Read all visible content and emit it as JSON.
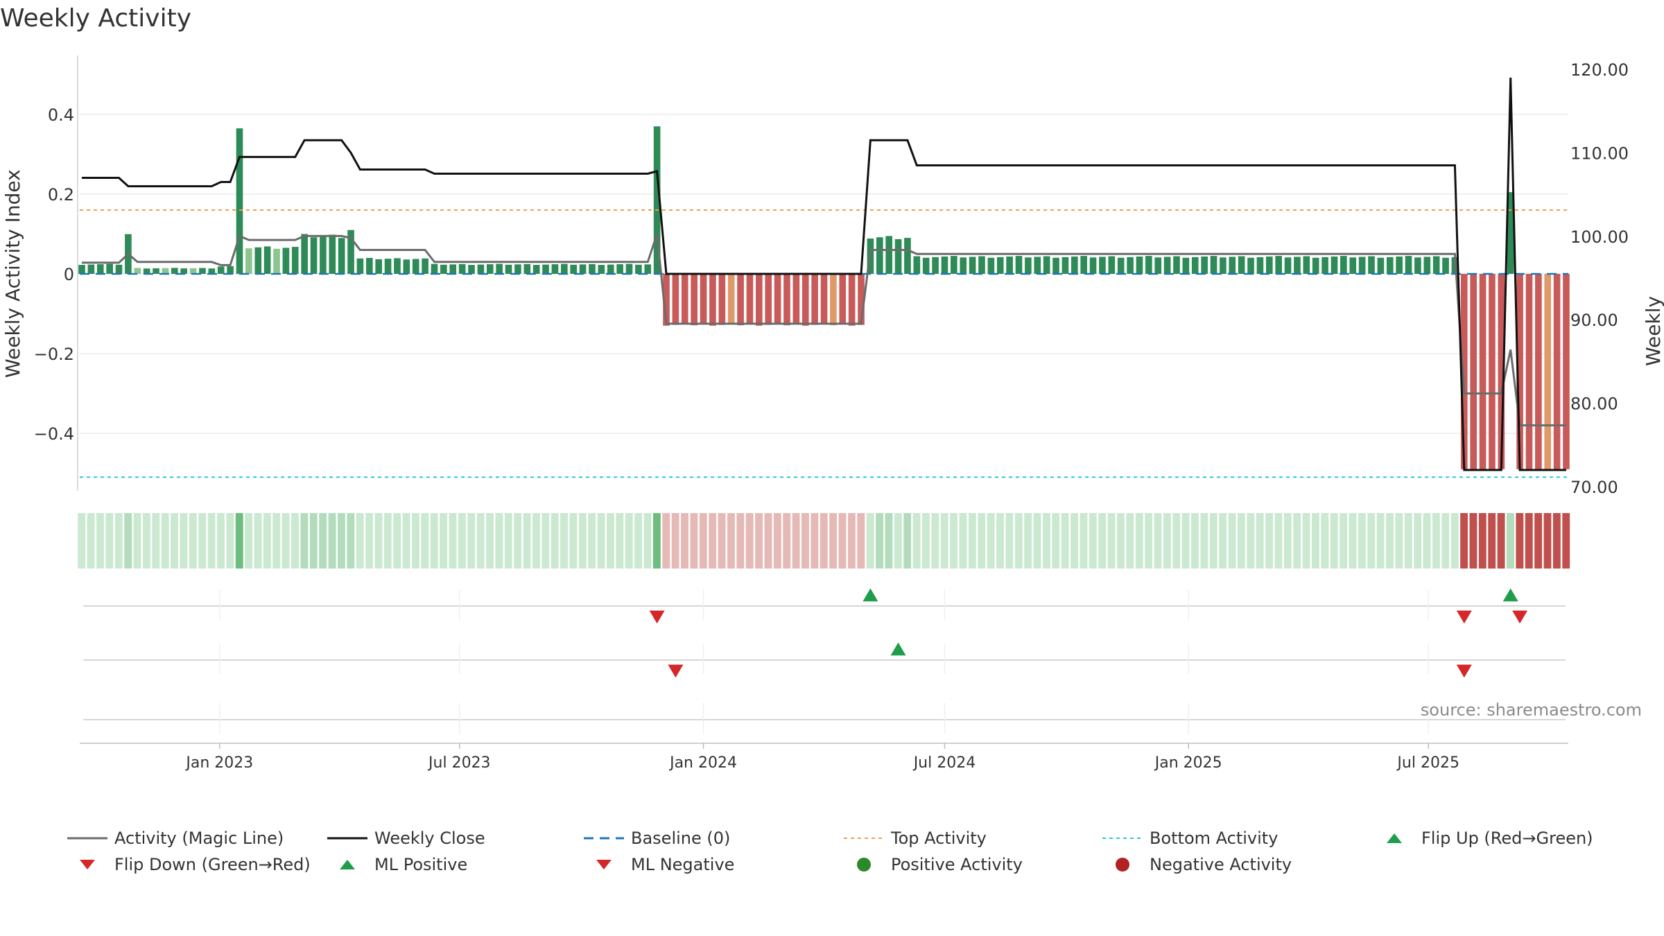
{
  "title": "Weekly Activity",
  "source_text": "source: sharemaestro.com",
  "colors": {
    "pos_dark": "#2e8b57",
    "pos_light": "#8cc68f",
    "neg_dark": "#c85a5a",
    "neg_light": "#e09a6a",
    "magic_line": "#6b6b6b",
    "close_line": "#111111",
    "baseline": "#1f77b4",
    "top_line": "#f0a050",
    "bottom_line": "#29c7d3",
    "up_marker": "#1e9e4a",
    "down_marker": "#d62728",
    "pos_dot": "#2a8a2a",
    "neg_dot": "#b22222"
  },
  "chart_data": {
    "type": "bar",
    "title": "Weekly Activity",
    "ylabel": "Weekly Activity Index",
    "ylabel_right": "Weekly Close Price",
    "ylim": [
      -0.55,
      0.55
    ],
    "ylim_right": [
      70,
      120
    ],
    "yticks": [
      {
        "v": 0.4,
        "label": "0.4"
      },
      {
        "v": 0.2,
        "label": "0.2"
      },
      {
        "v": 0,
        "label": "0"
      },
      {
        "v": -0.2,
        "label": "−0.2"
      },
      {
        "v": -0.4,
        "label": "−0.4"
      }
    ],
    "yticks_right": [
      {
        "v": 120,
        "label": "120.00"
      },
      {
        "v": 110,
        "label": "110.00"
      },
      {
        "v": 100,
        "label": "100.00"
      },
      {
        "v": 90,
        "label": "90.00"
      },
      {
        "v": 80,
        "label": "80.00"
      },
      {
        "v": 70,
        "label": "70.00"
      }
    ],
    "x_start": "2022-09-19",
    "x_end": "2025-10-13",
    "xticks": [
      {
        "date": "2023-01-01",
        "label": "Jan 2023"
      },
      {
        "date": "2023-07-01",
        "label": "Jul 2023"
      },
      {
        "date": "2024-01-01",
        "label": "Jan 2024"
      },
      {
        "date": "2024-07-01",
        "label": "Jul 2024"
      },
      {
        "date": "2025-01-01",
        "label": "Jan 2025"
      },
      {
        "date": "2025-07-01",
        "label": "Jul 2025"
      }
    ],
    "top_activity": 0.16,
    "bottom_activity": -0.51,
    "baseline": 0,
    "segments": [
      {
        "from": "2022-09-19",
        "to": "2022-10-17",
        "activity": 0.025,
        "close": 107.0,
        "magic": 0.028,
        "shade": "dark"
      },
      {
        "from": "2022-10-24",
        "to": "2022-10-24",
        "activity": 0.105,
        "close": 106.0,
        "magic": 0.05,
        "shade": "dark"
      },
      {
        "from": "2022-10-31",
        "to": "2022-12-26",
        "activity": 0.015,
        "close": 106.0,
        "magic": 0.03,
        "shade": "light"
      },
      {
        "from": "2023-01-02",
        "to": "2023-01-09",
        "activity": 0.02,
        "close": 106.5,
        "magic": 0.022,
        "shade": "dark"
      },
      {
        "from": "2023-01-16",
        "to": "2023-01-16",
        "activity": 0.365,
        "close": 109.5,
        "magic": 0.095,
        "shade": "dark"
      },
      {
        "from": "2023-01-23",
        "to": "2023-02-27",
        "activity": 0.07,
        "close": 109.5,
        "magic": 0.085,
        "shade": "light"
      },
      {
        "from": "2023-03-06",
        "to": "2023-04-03",
        "activity": 0.1,
        "close": 111.5,
        "magic": 0.095,
        "shade": "dark"
      },
      {
        "from": "2023-04-10",
        "to": "2023-04-10",
        "activity": 0.11,
        "close": 110.0,
        "magic": 0.09,
        "shade": "dark"
      },
      {
        "from": "2023-04-17",
        "to": "2023-06-05",
        "activity": 0.04,
        "close": 108.0,
        "magic": 0.06,
        "shade": "dark"
      },
      {
        "from": "2023-06-12",
        "to": "2023-11-20",
        "activity": 0.025,
        "close": 107.5,
        "magic": 0.03,
        "shade": "dark"
      },
      {
        "from": "2023-11-27",
        "to": "2023-11-27",
        "activity": 0.37,
        "close": 107.8,
        "magic": 0.1,
        "shade": "dark"
      },
      {
        "from": "2023-12-04",
        "to": "2024-04-29",
        "activity": -0.13,
        "close": 95.5,
        "magic": -0.125,
        "shade": "dark"
      },
      {
        "from": "2024-05-06",
        "to": "2024-06-03",
        "activity": 0.095,
        "close": 111.5,
        "magic": 0.06,
        "shade": "dark"
      },
      {
        "from": "2024-06-10",
        "to": "2025-07-21",
        "activity": 0.045,
        "close": 108.5,
        "magic": 0.05,
        "shade": "dark"
      },
      {
        "from": "2025-07-28",
        "to": "2025-08-25",
        "activity": -0.49,
        "close": 72.0,
        "magic": -0.3,
        "shade": "dark"
      },
      {
        "from": "2025-09-01",
        "to": "2025-09-01",
        "activity": 0.205,
        "close": 119.0,
        "magic": -0.19,
        "shade": "dark"
      },
      {
        "from": "2025-09-08",
        "to": "2025-10-13",
        "activity": -0.49,
        "close": 72.0,
        "magic": -0.38,
        "shade": "dark"
      }
    ],
    "event_rows": [
      {
        "up": [
          "2024-05-06",
          "2025-09-01"
        ],
        "down": [
          "2023-11-27",
          "2025-07-28",
          "2025-09-08"
        ]
      },
      {
        "up": [
          "2024-05-27"
        ],
        "down": [
          "2023-12-11"
        ],
        "down_row2": [
          "2025-07-28"
        ]
      },
      {
        "up": [],
        "down": []
      }
    ]
  },
  "legend": [
    {
      "label": "Activity (Magic Line)",
      "symbol": "gray-line"
    },
    {
      "label": "Weekly Close",
      "symbol": "black-line"
    },
    {
      "label": "Baseline (0)",
      "symbol": "blue-dash"
    },
    {
      "label": "Top Activity",
      "symbol": "orange-dot-line"
    },
    {
      "label": "Bottom Activity",
      "symbol": "cyan-dot-line"
    },
    {
      "label": "Flip Up (Red→Green)",
      "symbol": "green-triangle-up"
    },
    {
      "label": "Flip Down (Green→Red)",
      "symbol": "red-triangle-down"
    },
    {
      "label": "ML Positive",
      "symbol": "green-triangle-up"
    },
    {
      "label": "ML Negative",
      "symbol": "red-triangle-down"
    },
    {
      "label": "Positive Activity",
      "symbol": "green-circle"
    },
    {
      "label": "Negative Activity",
      "symbol": "red-circle"
    }
  ]
}
